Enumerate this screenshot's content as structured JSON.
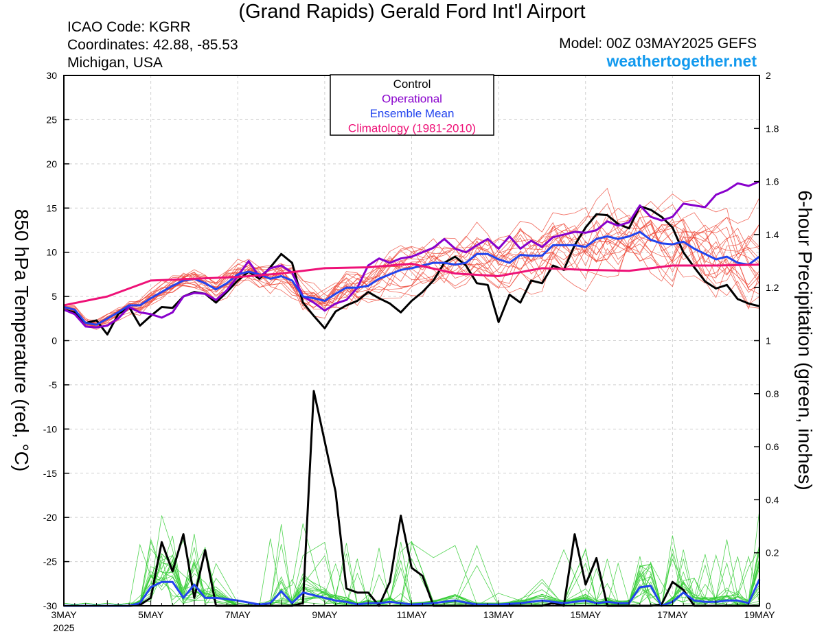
{
  "header": {
    "title": "(Grand Rapids) Gerald Ford Int'l Airport",
    "icao": "ICAO Code: KGRR",
    "coordinates": "Coordinates: 42.88, -85.53",
    "location": "Michigan, USA",
    "model": "Model: 00Z 03MAY2025 GEFS",
    "site": "weathertogether.net"
  },
  "colors": {
    "control": "#000000",
    "operational": "#8800cc",
    "ensemble_mean": "#2244ee",
    "climatology": "#ee1177",
    "members": "#ee4433",
    "precip_members": "#33cc33",
    "site": "#1199ee"
  },
  "chart_data": {
    "type": "line",
    "ylabel": "850 hPa Temperature (red, °C)",
    "y2label": "6-hour Precipitation (green, inches)",
    "ylim": [
      -30,
      30
    ],
    "y2lim": [
      0,
      2
    ],
    "yticks": [
      "30",
      "25",
      "20",
      "15",
      "10",
      "5",
      "0",
      "-5",
      "-10",
      "-15",
      "-20",
      "-25",
      "-30"
    ],
    "y2ticks": [
      "2",
      "1.8",
      "1.6",
      "1.4",
      "1.2",
      "1",
      "0.8",
      "0.6",
      "0.4",
      "0.2",
      "0"
    ],
    "x_label": "MAY",
    "x_year": "2025",
    "xlim": [
      3,
      19
    ],
    "xticks": [
      {
        "day": 3,
        "label": "3MAY"
      },
      {
        "day": 5,
        "label": "5MAY"
      },
      {
        "day": 7,
        "label": "7MAY"
      },
      {
        "day": 9,
        "label": "9MAY"
      },
      {
        "day": 11,
        "label": "11MAY"
      },
      {
        "day": 13,
        "label": "13MAY"
      },
      {
        "day": 15,
        "label": "15MAY"
      },
      {
        "day": 17,
        "label": "17MAY"
      },
      {
        "day": 19,
        "label": "19MAY"
      }
    ],
    "legend": {
      "position": "top-center",
      "entries": [
        "Control",
        "Operational",
        "Ensemble Mean",
        "Climatology (1981-2010)"
      ]
    },
    "series": [
      {
        "name": "Control",
        "color": "#000000",
        "axis": "temp",
        "x": [
          3,
          3.25,
          3.5,
          3.75,
          4,
          4.25,
          4.5,
          4.75,
          5,
          5.25,
          5.5,
          5.75,
          6,
          6.25,
          6.5,
          6.75,
          7,
          7.25,
          7.5,
          7.75,
          8,
          8.25,
          8.5,
          8.75,
          9,
          9.25,
          9.5,
          9.75,
          10,
          10.25,
          10.5,
          10.75,
          11,
          11.25,
          11.5,
          11.75,
          12,
          12.25,
          12.5,
          12.75,
          13,
          13.25,
          13.5,
          13.75,
          14,
          14.25,
          14.5,
          14.75,
          15,
          15.25,
          15.5,
          15.75,
          16,
          16.25,
          16.5,
          16.75,
          17,
          17.25,
          17.5,
          17.75,
          18,
          18.25,
          18.5,
          18.75,
          19
        ],
        "y": [
          3.5,
          3.2,
          2.0,
          2.3,
          0.7,
          3.0,
          3.8,
          1.7,
          2.8,
          3.8,
          3.7,
          5.0,
          5.5,
          5.3,
          4.3,
          5.5,
          6.8,
          7.8,
          7.0,
          8.3,
          9.8,
          8.8,
          4.3,
          2.8,
          1.4,
          3.3,
          4.0,
          4.5,
          5.5,
          4.8,
          4.2,
          3.2,
          4.5,
          5.5,
          6.8,
          8.8,
          9.5,
          8.5,
          6.5,
          6.3,
          2.1,
          5.2,
          4.3,
          6.8,
          6.5,
          8.5,
          8.0,
          10.8,
          12.8,
          14.3,
          14.2,
          13.2,
          12.7,
          15.2,
          14.8,
          14.0,
          12.8,
          10.0,
          8.3,
          6.7,
          5.9,
          6.3,
          4.7,
          4.2,
          3.9
        ]
      },
      {
        "name": "Operational",
        "color": "#8800cc",
        "axis": "temp",
        "x": [
          3,
          3.25,
          3.5,
          3.75,
          4,
          4.25,
          4.5,
          4.75,
          5,
          5.25,
          5.5,
          5.75,
          6,
          6.25,
          6.5,
          6.75,
          7,
          7.25,
          7.5,
          7.75,
          8,
          8.25,
          8.5,
          8.75,
          9,
          9.25,
          9.5,
          9.75,
          10,
          10.25,
          10.5,
          10.75,
          11,
          11.25,
          11.5,
          11.75,
          12,
          12.25,
          12.5,
          12.75,
          13,
          13.25,
          13.5,
          13.75,
          14,
          14.25,
          14.5,
          14.75,
          15,
          15.25,
          15.5,
          15.75,
          16,
          16.25,
          16.5,
          16.75,
          17,
          17.25,
          17.5,
          17.75,
          18,
          18.25,
          18.5,
          18.75,
          19
        ],
        "y": [
          3.5,
          3.0,
          1.6,
          1.5,
          1.7,
          2.5,
          3.8,
          3.2,
          3.0,
          2.6,
          3.2,
          5.0,
          5.4,
          5.3,
          4.6,
          5.7,
          7.3,
          9.0,
          7.2,
          8.2,
          8.5,
          7.7,
          5.0,
          4.3,
          3.4,
          4.2,
          4.6,
          6.0,
          8.5,
          9.3,
          8.8,
          9.3,
          9.5,
          10.0,
          10.5,
          11.5,
          10.4,
          10.0,
          10.8,
          11.5,
          10.4,
          11.8,
          10.4,
          11.3,
          10.6,
          11.7,
          12.0,
          12.3,
          12.2,
          12.5,
          13.5,
          13.0,
          13.4,
          15.3,
          14.0,
          13.6,
          14.0,
          15.5,
          15.3,
          15.1,
          16.5,
          17.0,
          17.8,
          17.5,
          18.0
        ]
      },
      {
        "name": "Ensemble Mean",
        "color": "#2244ee",
        "axis": "temp",
        "x": [
          3,
          3.25,
          3.5,
          3.75,
          4,
          4.25,
          4.5,
          4.75,
          5,
          5.25,
          5.5,
          5.75,
          6,
          6.25,
          6.5,
          6.75,
          7,
          7.25,
          7.5,
          7.75,
          8,
          8.25,
          8.5,
          8.75,
          9,
          9.25,
          9.5,
          9.75,
          10,
          10.25,
          10.5,
          10.75,
          11,
          11.25,
          11.5,
          11.75,
          12,
          12.25,
          12.5,
          12.75,
          13,
          13.25,
          13.5,
          13.75,
          14,
          14.25,
          14.5,
          14.75,
          15,
          15.25,
          15.5,
          15.75,
          16,
          16.25,
          16.5,
          16.75,
          17,
          17.25,
          17.5,
          17.75,
          18,
          18.25,
          18.5,
          18.75,
          19
        ],
        "y": [
          3.8,
          3.5,
          2.0,
          1.8,
          2.5,
          3.2,
          4.0,
          4.0,
          4.8,
          5.5,
          6.2,
          6.8,
          7.0,
          6.5,
          5.8,
          6.5,
          7.5,
          7.8,
          7.5,
          7.0,
          7.3,
          6.8,
          5.0,
          4.8,
          4.5,
          5.3,
          6.0,
          6.0,
          6.2,
          7.0,
          7.5,
          8.0,
          8.2,
          8.5,
          8.8,
          8.8,
          8.6,
          8.8,
          9.8,
          9.8,
          9.2,
          8.8,
          9.7,
          9.6,
          9.6,
          10.8,
          10.8,
          10.8,
          10.6,
          11.5,
          11.8,
          11.5,
          11.8,
          12.3,
          11.4,
          11.0,
          10.9,
          11.2,
          10.4,
          9.8,
          9.2,
          9.5,
          8.8,
          8.6,
          9.5
        ]
      },
      {
        "name": "Climatology (1981-2010)",
        "color": "#ee1177",
        "axis": "temp",
        "x": [
          3,
          4,
          5,
          6,
          7,
          8,
          9,
          10,
          11,
          12,
          13,
          14,
          15,
          16,
          17,
          18,
          19
        ],
        "y": [
          4.0,
          5.0,
          6.8,
          7.0,
          7.2,
          7.6,
          8.2,
          8.3,
          8.7,
          7.6,
          7.3,
          8.2,
          8.0,
          7.9,
          8.5,
          8.5,
          8.6
        ]
      },
      {
        "name": "Control",
        "color": "#000000",
        "axis": "precip",
        "x": [
          3,
          3.5,
          4,
          4.5,
          4.75,
          5,
          5.25,
          5.5,
          5.75,
          6,
          6.25,
          6.5,
          7,
          7.5,
          8,
          8.25,
          8.5,
          8.75,
          9,
          9.25,
          9.5,
          9.75,
          10,
          10.25,
          10.5,
          10.75,
          11,
          11.25,
          11.5,
          12,
          12.5,
          13,
          13.5,
          14,
          14.25,
          14.5,
          14.75,
          15,
          15.25,
          15.5,
          15.75,
          16,
          16.25,
          16.5,
          16.75,
          17,
          17.25,
          17.5,
          18,
          18.5,
          19
        ],
        "y": [
          0,
          0,
          0,
          0,
          0.003,
          0.03,
          0.24,
          0.13,
          0.27,
          0.03,
          0.21,
          0.0,
          0,
          0,
          0,
          0,
          0.01,
          0.81,
          0.62,
          0.43,
          0.065,
          0.05,
          0.05,
          0.0,
          0.09,
          0.34,
          0.143,
          0.113,
          0.0,
          0,
          0,
          0,
          0,
          0,
          0.01,
          0.0,
          0.27,
          0.08,
          0.18,
          0.0,
          0,
          0,
          0,
          0,
          0.005,
          0.09,
          0.06,
          0,
          0,
          0,
          0
        ]
      },
      {
        "name": "Ensemble Mean",
        "color": "#2244ee",
        "axis": "precip",
        "x": [
          3,
          3.5,
          4,
          4.5,
          4.75,
          5,
          5.25,
          5.5,
          5.75,
          6,
          6.25,
          6.5,
          7,
          7.5,
          7.75,
          8,
          8.25,
          8.5,
          9,
          9.25,
          9.5,
          9.75,
          10,
          10.25,
          10.5,
          10.75,
          11,
          11.5,
          12,
          12.5,
          13,
          13.5,
          14,
          14.5,
          15,
          15.25,
          15.5,
          15.75,
          16,
          16.25,
          16.5,
          16.75,
          17,
          17.25,
          17.5,
          17.75,
          18,
          18.25,
          18.5,
          18.75,
          19
        ],
        "y": [
          0,
          0,
          0,
          0,
          0.01,
          0.07,
          0.09,
          0.09,
          0.03,
          0.08,
          0.03,
          0.03,
          0.02,
          0.005,
          0.01,
          0.055,
          0.01,
          0.05,
          0.03,
          0.02,
          0.015,
          0.005,
          0.01,
          0.01,
          0.015,
          0.01,
          0.005,
          0.01,
          0.02,
          0.005,
          0.005,
          0.01,
          0.02,
          0.01,
          0.02,
          0.01,
          0.015,
          0.01,
          0.01,
          0.07,
          0.075,
          0.0,
          0.015,
          0.05,
          0.02,
          0.015,
          0.015,
          0.02,
          0.02,
          0.01,
          0.1
        ]
      }
    ],
    "member_note_count": 20
  }
}
